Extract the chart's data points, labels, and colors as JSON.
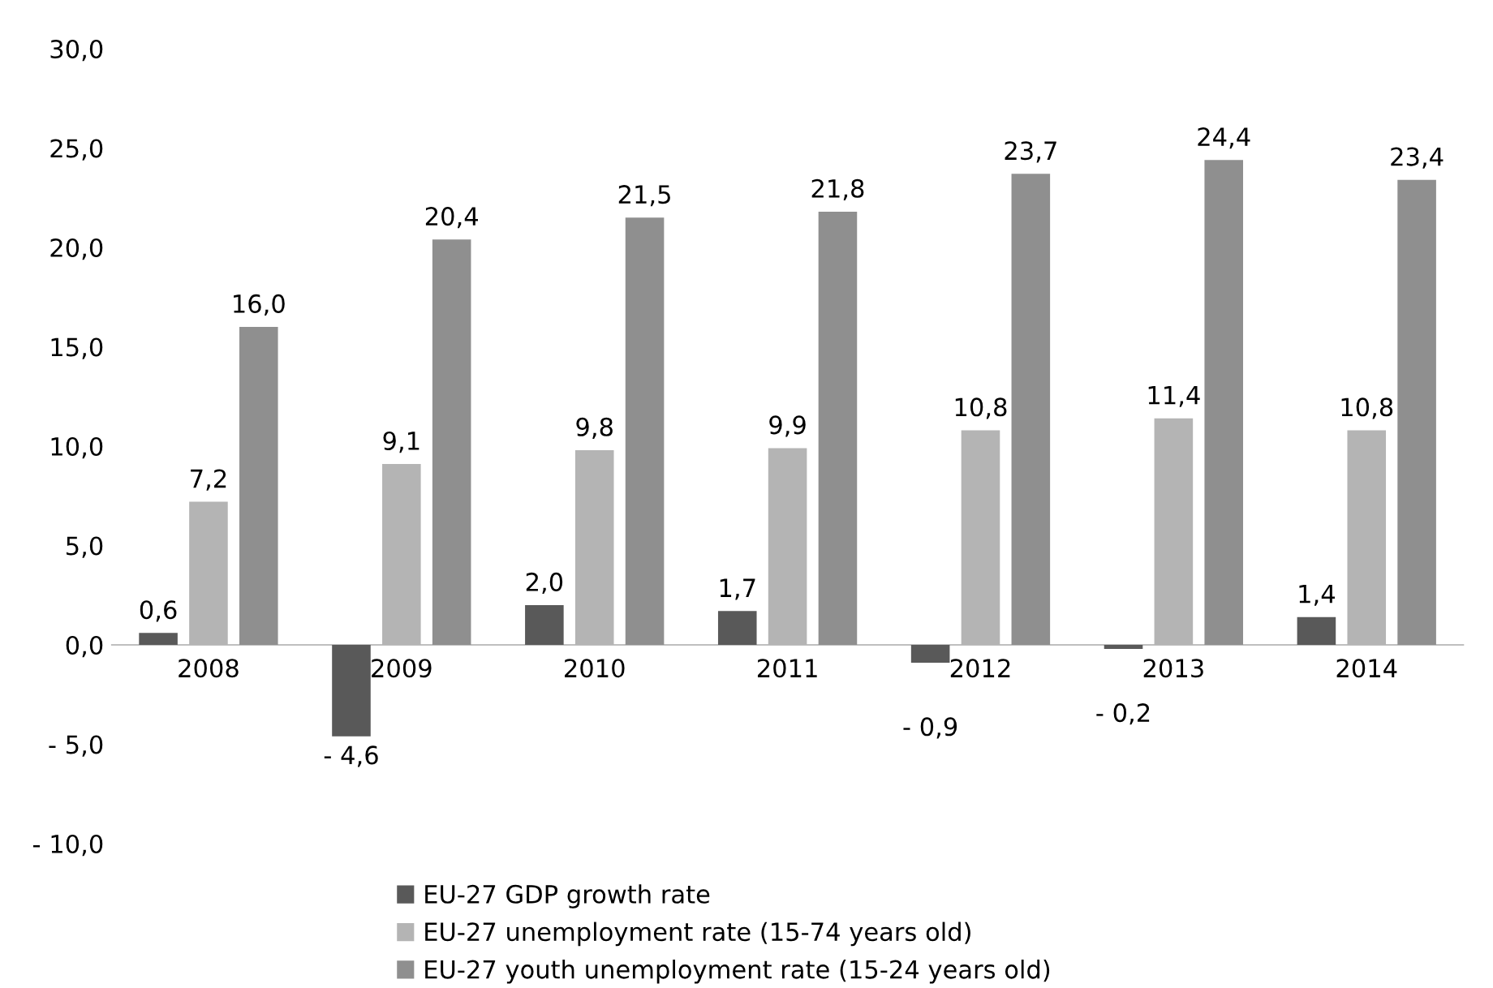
{
  "chart_data": {
    "type": "bar",
    "categories": [
      "2008",
      "2009",
      "2010",
      "2011",
      "2012",
      "2013",
      "2014"
    ],
    "series": [
      {
        "name": "EU-27 GDP growth rate",
        "color": "#595959",
        "values": [
          0.6,
          -4.6,
          2.0,
          1.7,
          -0.9,
          -0.2,
          1.4
        ],
        "value_labels": [
          "0,6",
          "- 4,6",
          "2,0",
          "1,7",
          "- 0,9",
          "- 0,2",
          "1,4"
        ]
      },
      {
        "name": "EU-27 unemployment rate (15-74 years old)",
        "color": "#b4b4b4",
        "values": [
          7.2,
          9.1,
          9.8,
          9.9,
          10.8,
          11.4,
          10.8
        ],
        "value_labels": [
          "7,2",
          "9,1",
          "9,8",
          "9,9",
          "10,8",
          "11,4",
          "10,8"
        ]
      },
      {
        "name": "EU-27 youth unemployment rate (15-24 years old)",
        "color": "#8f8f8f",
        "values": [
          16.0,
          20.4,
          21.5,
          21.8,
          23.7,
          24.4,
          23.4
        ],
        "value_labels": [
          "16,0",
          "20,4",
          "21,5",
          "21,8",
          "23,7",
          "24,4",
          "23,4"
        ]
      }
    ],
    "ylim": [
      -10,
      30
    ],
    "yticks": [
      {
        "value": -10,
        "label": "- 10,0"
      },
      {
        "value": -5,
        "label": "- 5,0"
      },
      {
        "value": 0,
        "label": "0,0"
      },
      {
        "value": 5,
        "label": "5,0"
      },
      {
        "value": 10,
        "label": "10,0"
      },
      {
        "value": 15,
        "label": "15,0"
      },
      {
        "value": 20,
        "label": "20,0"
      },
      {
        "value": 25,
        "label": "25,0"
      },
      {
        "value": 30,
        "label": "30,0"
      }
    ],
    "grid": false,
    "legend": "bottom"
  }
}
